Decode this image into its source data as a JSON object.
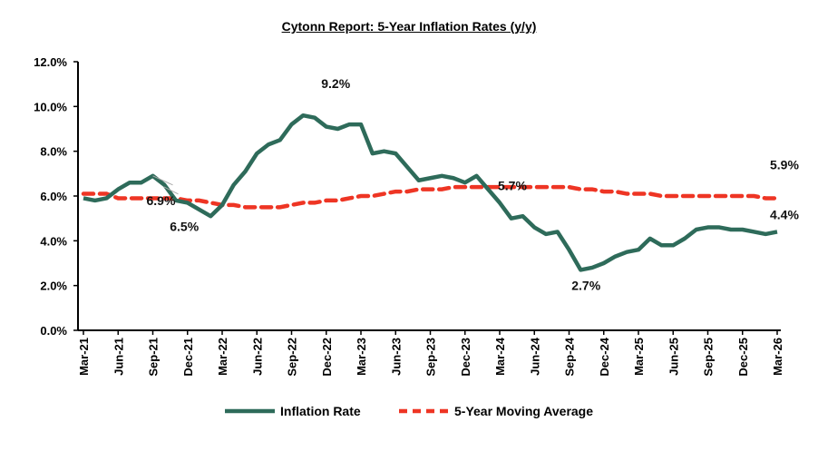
{
  "chart_data": {
    "type": "line",
    "title": "Cytonn Report: 5-Year Inflation Rates (y/y)",
    "xlabel": "",
    "ylabel": "",
    "ylim": [
      0,
      12
    ],
    "y_ticks": [
      "0.0%",
      "2.0%",
      "4.0%",
      "6.0%",
      "8.0%",
      "10.0%",
      "12.0%"
    ],
    "x_tick_labels": [
      "Mar-21",
      "Jun-21",
      "Sep-21",
      "Dec-21",
      "Mar-22",
      "Jun-22",
      "Sep-22",
      "Dec-22",
      "Mar-23",
      "Jun-23",
      "Sep-23",
      "Dec-23",
      "Mar-24",
      "Jun-24",
      "Sep-24",
      "Dec-24",
      "Mar-25",
      "Jun-25",
      "Sep-25",
      "Dec-25",
      "Mar-26"
    ],
    "x_start": "Mar-21",
    "x_end": "Mar-26",
    "legend_position": "bottom",
    "grid": false,
    "series": [
      {
        "name": "Inflation Rate",
        "color": "#2E6B5A",
        "style": "solid",
        "values": [
          5.9,
          5.8,
          5.9,
          6.3,
          6.6,
          6.6,
          6.9,
          6.5,
          5.8,
          5.7,
          5.4,
          5.1,
          5.6,
          6.5,
          7.1,
          7.9,
          8.3,
          8.5,
          9.2,
          9.6,
          9.5,
          9.1,
          9.0,
          9.2,
          9.2,
          7.9,
          8.0,
          7.9,
          7.3,
          6.7,
          6.8,
          6.9,
          6.8,
          6.6,
          6.9,
          6.3,
          5.7,
          5.0,
          5.1,
          4.6,
          4.3,
          4.4,
          3.6,
          2.7,
          2.8,
          3.0,
          3.3,
          3.5,
          3.6,
          4.1,
          3.8,
          3.8,
          4.1,
          4.5,
          4.6,
          4.6,
          4.5,
          4.5,
          4.4,
          4.3,
          4.4
        ]
      },
      {
        "name": "5-Year Moving Average",
        "color": "#EE3524",
        "style": "dashed",
        "values": [
          6.1,
          6.1,
          6.1,
          5.9,
          5.9,
          5.9,
          5.9,
          5.9,
          5.9,
          5.8,
          5.8,
          5.7,
          5.6,
          5.6,
          5.5,
          5.5,
          5.5,
          5.5,
          5.6,
          5.7,
          5.7,
          5.8,
          5.8,
          5.9,
          6.0,
          6.0,
          6.1,
          6.2,
          6.2,
          6.3,
          6.3,
          6.3,
          6.4,
          6.4,
          6.4,
          6.4,
          6.4,
          6.4,
          6.4,
          6.4,
          6.4,
          6.4,
          6.4,
          6.3,
          6.3,
          6.2,
          6.2,
          6.1,
          6.1,
          6.1,
          6.0,
          6.0,
          6.0,
          6.0,
          6.0,
          6.0,
          6.0,
          6.0,
          6.0,
          5.9,
          5.9
        ]
      }
    ],
    "annotations": [
      {
        "text": "6.9%",
        "series": 0,
        "index": 6
      },
      {
        "text": "6.5%",
        "series": 0,
        "index": 7
      },
      {
        "text": "9.2%",
        "series": 0,
        "index": 23
      },
      {
        "text": "5.7%",
        "series": 0,
        "index": 36
      },
      {
        "text": "2.7%",
        "series": 0,
        "index": 43
      },
      {
        "text": "5.9%",
        "series": 1,
        "index": 60
      },
      {
        "text": "4.4%",
        "series": 0,
        "index": 60
      }
    ]
  }
}
